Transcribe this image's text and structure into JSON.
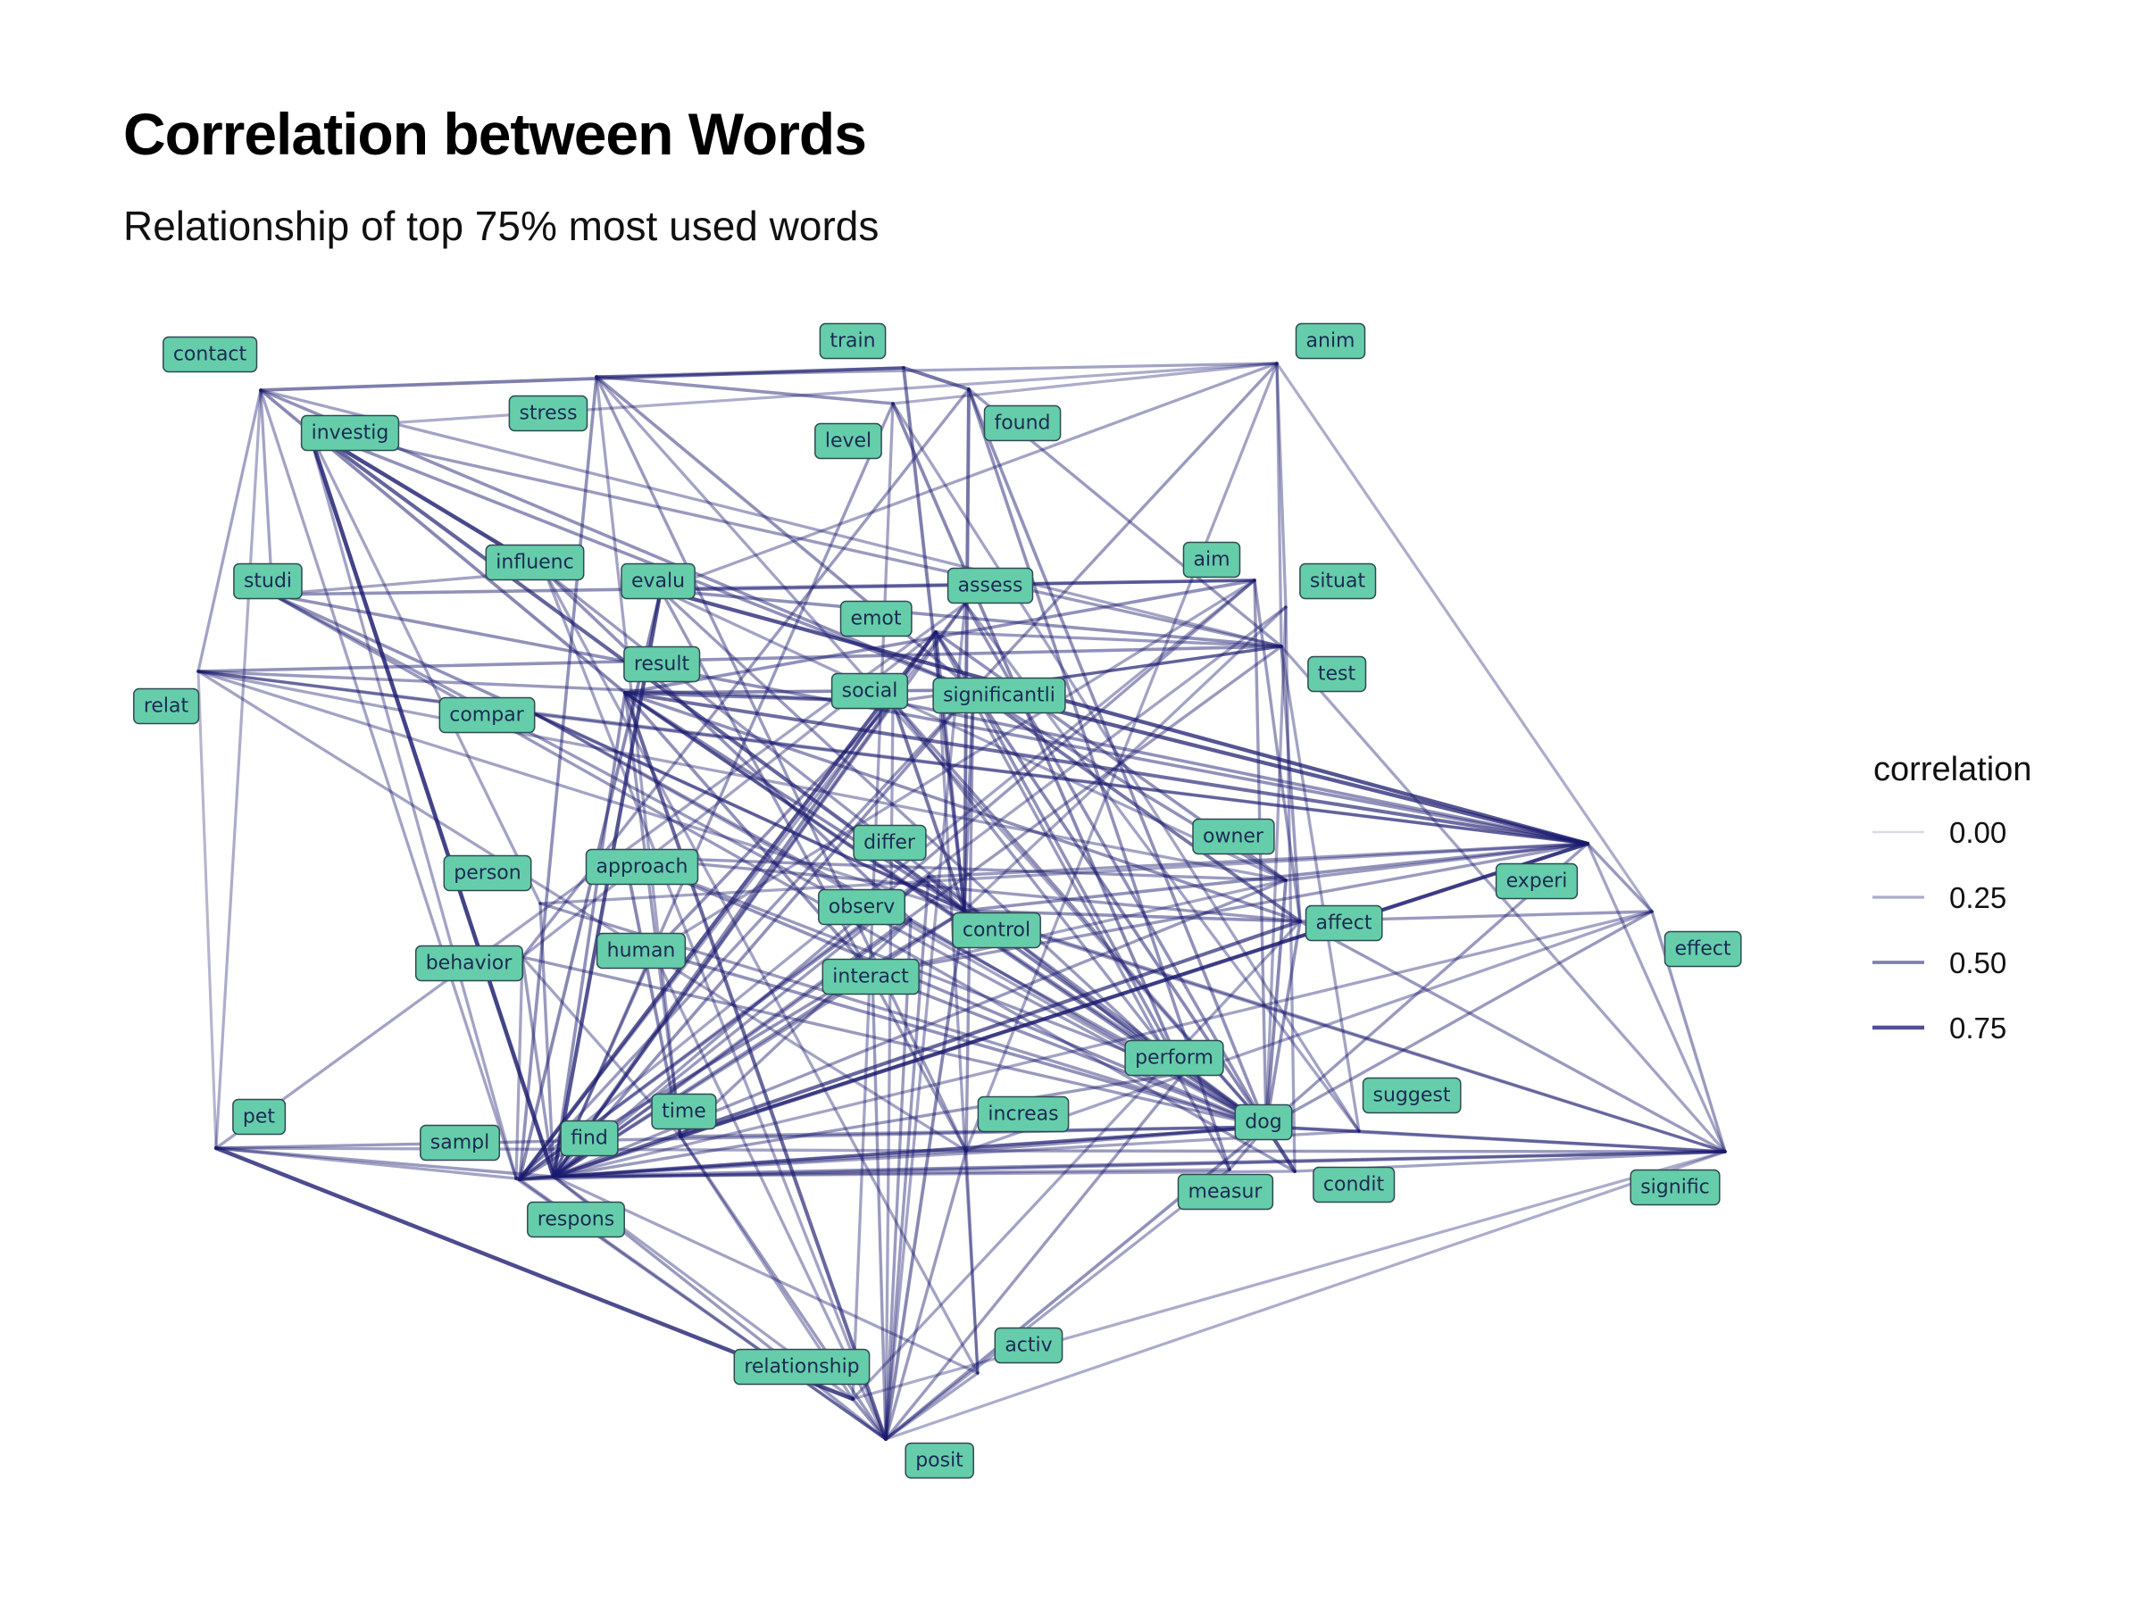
{
  "title": "Correlation between Words",
  "subtitle": "Relationship of top 75% most used words",
  "colors": {
    "edge": "#1a1a6e",
    "label_fill": "#66cdaa",
    "label_border": "#2e4a52",
    "label_text": "#1b2b55"
  },
  "legend": {
    "title": "correlation",
    "entries": [
      {
        "value": 0.0,
        "label": "0.00"
      },
      {
        "value": 0.25,
        "label": "0.25"
      },
      {
        "value": 0.5,
        "label": "0.50"
      },
      {
        "value": 0.75,
        "label": "0.75"
      }
    ]
  },
  "nodes": [
    "contact",
    "train",
    "anim",
    "stress",
    "investig",
    "level",
    "found",
    "studi",
    "influenc",
    "evalu",
    "assess",
    "aim",
    "situat",
    "emot",
    "relat",
    "result",
    "social",
    "significantli",
    "test",
    "compar",
    "owner",
    "differ",
    "experi",
    "person",
    "approach",
    "observ",
    "affect",
    "control",
    "effect",
    "behavior",
    "human",
    "interact",
    "perform",
    "suggest",
    "pet",
    "time",
    "increas",
    "dog",
    "sampl",
    "find",
    "condit",
    "respons",
    "measur",
    "signific",
    "activ",
    "relationship",
    "posit"
  ],
  "edges": [
    [
      "investig",
      "find",
      0.82
    ],
    [
      "investig",
      "influenc",
      0.8
    ],
    [
      "investig",
      "control",
      0.65
    ],
    [
      "evalu",
      "experi",
      0.72
    ],
    [
      "evalu",
      "find",
      0.72
    ],
    [
      "emot",
      "respons",
      0.7
    ],
    [
      "result",
      "experi",
      0.6
    ],
    [
      "result",
      "posit",
      0.62
    ],
    [
      "significantli",
      "experi",
      0.7
    ],
    [
      "significantli",
      "affect",
      0.55
    ],
    [
      "pet",
      "relationship",
      0.78
    ],
    [
      "time",
      "experi",
      0.7
    ],
    [
      "find",
      "affect",
      0.62
    ],
    [
      "dog",
      "condit",
      0.7
    ],
    [
      "control",
      "dog",
      0.5
    ],
    [
      "approach",
      "time",
      0.45
    ],
    [
      "social",
      "control",
      0.55
    ],
    [
      "emot",
      "significantli",
      0.5
    ],
    [
      "result",
      "social",
      0.5
    ],
    [
      "stress",
      "train",
      0.3
    ],
    [
      "contact",
      "train",
      0.5
    ],
    [
      "train",
      "found",
      0.55
    ],
    [
      "train",
      "control",
      0.5
    ],
    [
      "found",
      "control",
      0.55
    ],
    [
      "anim",
      "situat",
      0.3
    ],
    [
      "anim",
      "stress",
      0.3
    ],
    [
      "anim",
      "test",
      0.3
    ],
    [
      "anim",
      "effect",
      0.25
    ],
    [
      "anim",
      "increas",
      0.3
    ],
    [
      "anim",
      "investig",
      0.25
    ],
    [
      "anim",
      "evalu",
      0.3
    ],
    [
      "anim",
      "significantli",
      0.35
    ],
    [
      "anim",
      "level",
      0.25
    ],
    [
      "contact",
      "relat",
      0.3
    ],
    [
      "contact",
      "pet",
      0.25
    ],
    [
      "contact",
      "studi",
      0.3
    ],
    [
      "contact",
      "significantli",
      0.4
    ],
    [
      "contact",
      "sampl",
      0.3
    ],
    [
      "contact",
      "result",
      0.45
    ],
    [
      "contact",
      "test",
      0.3
    ],
    [
      "investig",
      "significantli",
      0.4
    ],
    [
      "investig",
      "sampl",
      0.3
    ],
    [
      "investig",
      "person",
      0.3
    ],
    [
      "investig",
      "test",
      0.35
    ],
    [
      "stress",
      "respons",
      0.4
    ],
    [
      "stress",
      "level",
      0.4
    ],
    [
      "stress",
      "significantli",
      0.4
    ],
    [
      "stress",
      "increas",
      0.35
    ],
    [
      "stress",
      "time",
      0.3
    ],
    [
      "stress",
      "dog",
      0.3
    ],
    [
      "level",
      "perform",
      0.45
    ],
    [
      "level",
      "relationship",
      0.3
    ],
    [
      "level",
      "find",
      0.35
    ],
    [
      "level",
      "suggest",
      0.3
    ],
    [
      "found",
      "behavior",
      0.35
    ],
    [
      "found",
      "measur",
      0.4
    ],
    [
      "found",
      "dog",
      0.4
    ],
    [
      "found",
      "test",
      0.35
    ],
    [
      "studi",
      "experi",
      0.4
    ],
    [
      "studi",
      "aim",
      0.4
    ],
    [
      "studi",
      "influenc",
      0.3
    ],
    [
      "studi",
      "control",
      0.4
    ],
    [
      "studi",
      "condit",
      0.35
    ],
    [
      "studi",
      "dog",
      0.35
    ],
    [
      "relat",
      "compar",
      0.3
    ],
    [
      "relat",
      "test",
      0.4
    ],
    [
      "relat",
      "experi",
      0.35
    ],
    [
      "relat",
      "pet",
      0.2
    ],
    [
      "relat",
      "social",
      0.35
    ],
    [
      "relat",
      "signific",
      0.3
    ],
    [
      "relat",
      "increas",
      0.3
    ],
    [
      "relat",
      "owner",
      0.3
    ],
    [
      "influenc",
      "posit",
      0.3
    ],
    [
      "influenc",
      "observ",
      0.4
    ],
    [
      "influenc",
      "perform",
      0.35
    ],
    [
      "influenc",
      "activ",
      0.3
    ],
    [
      "evalu",
      "aim",
      0.4
    ],
    [
      "evalu",
      "respons",
      0.45
    ],
    [
      "evalu",
      "perform",
      0.35
    ],
    [
      "evalu",
      "test",
      0.4
    ],
    [
      "evalu",
      "increas",
      0.35
    ],
    [
      "evalu",
      "owner",
      0.3
    ],
    [
      "assess",
      "dog",
      0.4
    ],
    [
      "assess",
      "find",
      0.35
    ],
    [
      "assess",
      "suggest",
      0.3
    ],
    [
      "assess",
      "pet",
      0.3
    ],
    [
      "assess",
      "respons",
      0.3
    ],
    [
      "assess",
      "posit",
      0.3
    ],
    [
      "aim",
      "result",
      0.4
    ],
    [
      "aim",
      "find",
      0.35
    ],
    [
      "aim",
      "sampl",
      0.3
    ],
    [
      "aim",
      "affect",
      0.35
    ],
    [
      "aim",
      "human",
      0.3
    ],
    [
      "aim",
      "dog",
      0.35
    ],
    [
      "situat",
      "respons",
      0.3
    ],
    [
      "situat",
      "control",
      0.3
    ],
    [
      "situat",
      "condit",
      0.3
    ],
    [
      "situat",
      "dog",
      0.3
    ],
    [
      "emot",
      "find",
      0.45
    ],
    [
      "emot",
      "measur",
      0.35
    ],
    [
      "emot",
      "owner",
      0.4
    ],
    [
      "emot",
      "behavior",
      0.3
    ],
    [
      "emot",
      "control",
      0.4
    ],
    [
      "emot",
      "test",
      0.35
    ],
    [
      "emot",
      "activ",
      0.3
    ],
    [
      "result",
      "significantli",
      0.45
    ],
    [
      "result",
      "dog",
      0.4
    ],
    [
      "result",
      "control",
      0.45
    ],
    [
      "result",
      "affect",
      0.4
    ],
    [
      "result",
      "find",
      0.4
    ],
    [
      "result",
      "perform",
      0.45
    ],
    [
      "result",
      "interact",
      0.4
    ],
    [
      "result",
      "time",
      0.35
    ],
    [
      "social",
      "find",
      0.4
    ],
    [
      "social",
      "human",
      0.4
    ],
    [
      "social",
      "dog",
      0.4
    ],
    [
      "social",
      "experi",
      0.4
    ],
    [
      "social",
      "perform",
      0.35
    ],
    [
      "social",
      "test",
      0.35
    ],
    [
      "social",
      "posit",
      0.3
    ],
    [
      "significantli",
      "dog",
      0.45
    ],
    [
      "significantli",
      "find",
      0.4
    ],
    [
      "significantli",
      "owner",
      0.4
    ],
    [
      "significantli",
      "perform",
      0.4
    ],
    [
      "significantli",
      "test",
      0.35
    ],
    [
      "significantli",
      "increas",
      0.35
    ],
    [
      "significantli",
      "respons",
      0.35
    ],
    [
      "significantli",
      "control",
      0.4
    ],
    [
      "test",
      "find",
      0.35
    ],
    [
      "test",
      "affect",
      0.35
    ],
    [
      "test",
      "suggest",
      0.3
    ],
    [
      "test",
      "signific",
      0.3
    ],
    [
      "compar",
      "experi",
      0.35
    ],
    [
      "compar",
      "perform",
      0.35
    ],
    [
      "compar",
      "control",
      0.35
    ],
    [
      "compar",
      "dog",
      0.3
    ],
    [
      "owner",
      "dog",
      0.45
    ],
    [
      "owner",
      "find",
      0.35
    ],
    [
      "owner",
      "experi",
      0.35
    ],
    [
      "owner",
      "interact",
      0.3
    ],
    [
      "differ",
      "respons",
      0.4
    ],
    [
      "differ",
      "control",
      0.4
    ],
    [
      "differ",
      "find",
      0.35
    ],
    [
      "differ",
      "experi",
      0.35
    ],
    [
      "differ",
      "dog",
      0.4
    ],
    [
      "differ",
      "posit",
      0.35
    ],
    [
      "experi",
      "effect",
      0.35
    ],
    [
      "experi",
      "find",
      0.4
    ],
    [
      "experi",
      "dog",
      0.35
    ],
    [
      "experi",
      "signific",
      0.3
    ],
    [
      "person",
      "dog",
      0.35
    ],
    [
      "person",
      "find",
      0.35
    ],
    [
      "person",
      "experi",
      0.3
    ],
    [
      "approach",
      "dog",
      0.4
    ],
    [
      "approach",
      "owner",
      0.35
    ],
    [
      "approach",
      "affect",
      0.35
    ],
    [
      "approach",
      "perform",
      0.35
    ],
    [
      "observ",
      "dog",
      0.4
    ],
    [
      "observ",
      "find",
      0.35
    ],
    [
      "observ",
      "time",
      0.35
    ],
    [
      "observ",
      "posit",
      0.35
    ],
    [
      "affect",
      "effect",
      0.35
    ],
    [
      "affect",
      "dog",
      0.4
    ],
    [
      "affect",
      "relationship",
      0.3
    ],
    [
      "affect",
      "signific",
      0.35
    ],
    [
      "control",
      "posit",
      0.45
    ],
    [
      "control",
      "find",
      0.4
    ],
    [
      "control",
      "affect",
      0.4
    ],
    [
      "control",
      "respons",
      0.4
    ],
    [
      "control",
      "experi",
      0.4
    ],
    [
      "control",
      "signific",
      0.35
    ],
    [
      "effect",
      "dog",
      0.35
    ],
    [
      "effect",
      "find",
      0.3
    ],
    [
      "effect",
      "signific",
      0.35
    ],
    [
      "effect",
      "increas",
      0.3
    ],
    [
      "behavior",
      "find",
      0.35
    ],
    [
      "behavior",
      "dog",
      0.35
    ],
    [
      "behavior",
      "time",
      0.3
    ],
    [
      "behavior",
      "sampl",
      0.3
    ],
    [
      "human",
      "dog",
      0.4
    ],
    [
      "human",
      "find",
      0.35
    ],
    [
      "human",
      "posit",
      0.3
    ],
    [
      "interact",
      "dog",
      0.4
    ],
    [
      "interact",
      "find",
      0.35
    ],
    [
      "interact",
      "posit",
      0.35
    ],
    [
      "interact",
      "experi",
      0.35
    ],
    [
      "perform",
      "dog",
      0.45
    ],
    [
      "perform",
      "posit",
      0.35
    ],
    [
      "perform",
      "find",
      0.35
    ],
    [
      "suggest",
      "dog",
      0.35
    ],
    [
      "suggest",
      "find",
      0.3
    ],
    [
      "suggest",
      "signific",
      0.3
    ],
    [
      "pet",
      "find",
      0.35
    ],
    [
      "pet",
      "dog",
      0.35
    ],
    [
      "pet",
      "sampl",
      0.3
    ],
    [
      "pet",
      "increas",
      0.3
    ],
    [
      "time",
      "dog",
      0.35
    ],
    [
      "time",
      "posit",
      0.35
    ],
    [
      "time",
      "relationship",
      0.3
    ],
    [
      "increas",
      "dog",
      0.4
    ],
    [
      "increas",
      "find",
      0.35
    ],
    [
      "increas",
      "posit",
      0.35
    ],
    [
      "increas",
      "signific",
      0.35
    ],
    [
      "increas",
      "activ",
      0.3
    ],
    [
      "dog",
      "posit",
      0.4
    ],
    [
      "dog",
      "signific",
      0.4
    ],
    [
      "dog",
      "measur",
      0.35
    ],
    [
      "dog",
      "find",
      0.4
    ],
    [
      "sampl",
      "find",
      0.4
    ],
    [
      "sampl",
      "respons",
      0.4
    ],
    [
      "sampl",
      "posit",
      0.3
    ],
    [
      "find",
      "respons",
      0.45
    ],
    [
      "find",
      "posit",
      0.35
    ],
    [
      "find",
      "signific",
      0.4
    ],
    [
      "find",
      "relationship",
      0.3
    ],
    [
      "condit",
      "signific",
      0.3
    ],
    [
      "condit",
      "find",
      0.3
    ],
    [
      "respons",
      "posit",
      0.35
    ],
    [
      "respons",
      "dog",
      0.35
    ],
    [
      "respons",
      "signific",
      0.35
    ],
    [
      "measur",
      "posit",
      0.3
    ],
    [
      "measur",
      "find",
      0.3
    ],
    [
      "activ",
      "posit",
      0.3
    ],
    [
      "activ",
      "find",
      0.3
    ],
    [
      "relationship",
      "posit",
      0.4
    ],
    [
      "signific",
      "posit",
      0.25
    ],
    [
      "signific",
      "relationship",
      0.25
    ]
  ]
}
